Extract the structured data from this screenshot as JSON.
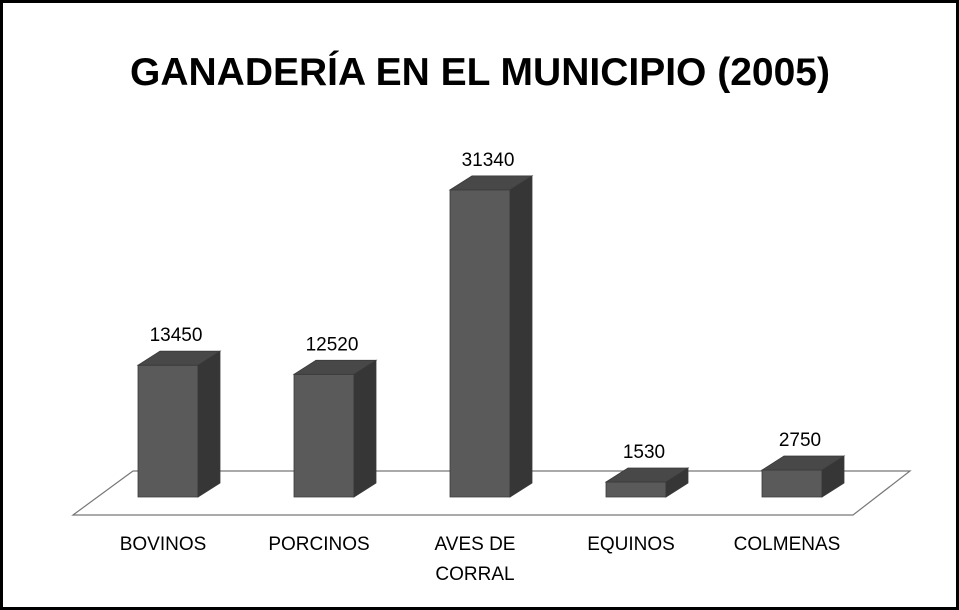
{
  "chart_data": {
    "type": "bar3d",
    "title": "GANADERÍA EN EL MUNICIPIO (2005)",
    "categories": [
      "BOVINOS",
      "PORCINOS",
      "AVES DE CORRAL",
      "EQUINOS",
      "COLMENAS"
    ],
    "values": [
      13450,
      12520,
      31340,
      1530,
      2750
    ],
    "color": "#5a5a5a"
  }
}
